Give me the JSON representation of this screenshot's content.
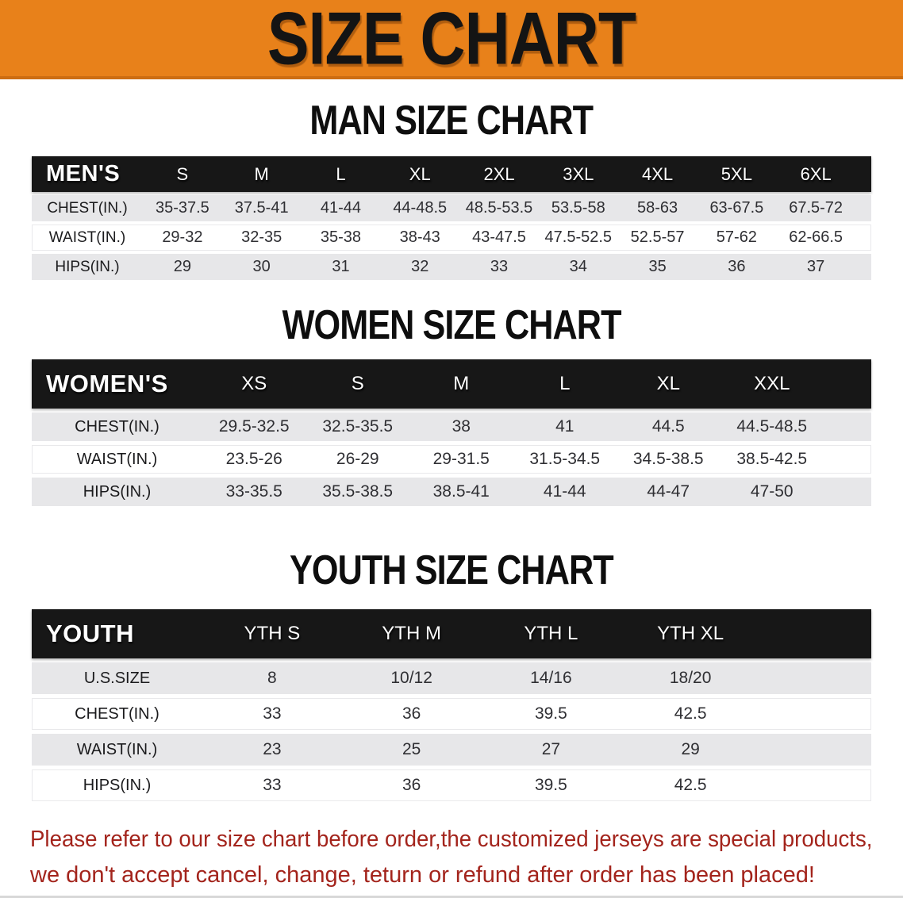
{
  "banner": {
    "title": "SIZE CHART"
  },
  "sections": [
    {
      "title": "MAN SIZE CHART",
      "header_label": "MEN'S",
      "columns": [
        "S",
        "M",
        "L",
        "XL",
        "2XL",
        "3XL",
        "4XL",
        "5XL",
        "6XL"
      ],
      "rows": [
        {
          "label": "CHEST(IN.)",
          "values": [
            "35-37.5",
            "37.5-41",
            "41-44",
            "44-48.5",
            "48.5-53.5",
            "53.5-58",
            "58-63",
            "63-67.5",
            "67.5-72"
          ]
        },
        {
          "label": "WAIST(IN.)",
          "values": [
            "29-32",
            "32-35",
            "35-38",
            "38-43",
            "43-47.5",
            "47.5-52.5",
            "52.5-57",
            "57-62",
            "62-66.5"
          ]
        },
        {
          "label": "HIPS(IN.)",
          "values": [
            "29",
            "30",
            "31",
            "32",
            "33",
            "34",
            "35",
            "36",
            "37"
          ]
        }
      ]
    },
    {
      "title": "WOMEN SIZE CHART",
      "header_label": "WOMEN'S",
      "columns": [
        "XS",
        "S",
        "M",
        "L",
        "XL",
        "XXL"
      ],
      "rows": [
        {
          "label": "CHEST(IN.)",
          "values": [
            "29.5-32.5",
            "32.5-35.5",
            "38",
            "41",
            "44.5",
            "44.5-48.5"
          ]
        },
        {
          "label": "WAIST(IN.)",
          "values": [
            "23.5-26",
            "26-29",
            "29-31.5",
            "31.5-34.5",
            "34.5-38.5",
            "38.5-42.5"
          ]
        },
        {
          "label": "HIPS(IN.)",
          "values": [
            "33-35.5",
            "35.5-38.5",
            "38.5-41",
            "41-44",
            "44-47",
            "47-50"
          ]
        }
      ]
    },
    {
      "title": "YOUTH SIZE CHART",
      "header_label": "YOUTH",
      "columns": [
        "YTH S",
        "YTH M",
        "YTH L",
        "YTH XL"
      ],
      "rows": [
        {
          "label": "U.S.SIZE",
          "values": [
            "8",
            "10/12",
            "14/16",
            "18/20"
          ]
        },
        {
          "label": "CHEST(IN.)",
          "values": [
            "33",
            "36",
            "39.5",
            "42.5"
          ]
        },
        {
          "label": "WAIST(IN.)",
          "values": [
            "23",
            "25",
            "27",
            "29"
          ]
        },
        {
          "label": "HIPS(IN.)",
          "values": [
            "33",
            "36",
            "39.5",
            "42.5"
          ]
        }
      ]
    }
  ],
  "disclaimer": {
    "line1": "Please refer to our size chart before order,the customized jerseys are special products,",
    "line2": "we don't accept cancel, change, teturn or refund after order has been placed!"
  },
  "colors": {
    "banner_bg": "#E8811A",
    "banner_text": "#141414",
    "table_header_bg": "#171717",
    "row_shaded_bg": "#E7E7E9",
    "disclaimer_text": "#A3241C"
  }
}
